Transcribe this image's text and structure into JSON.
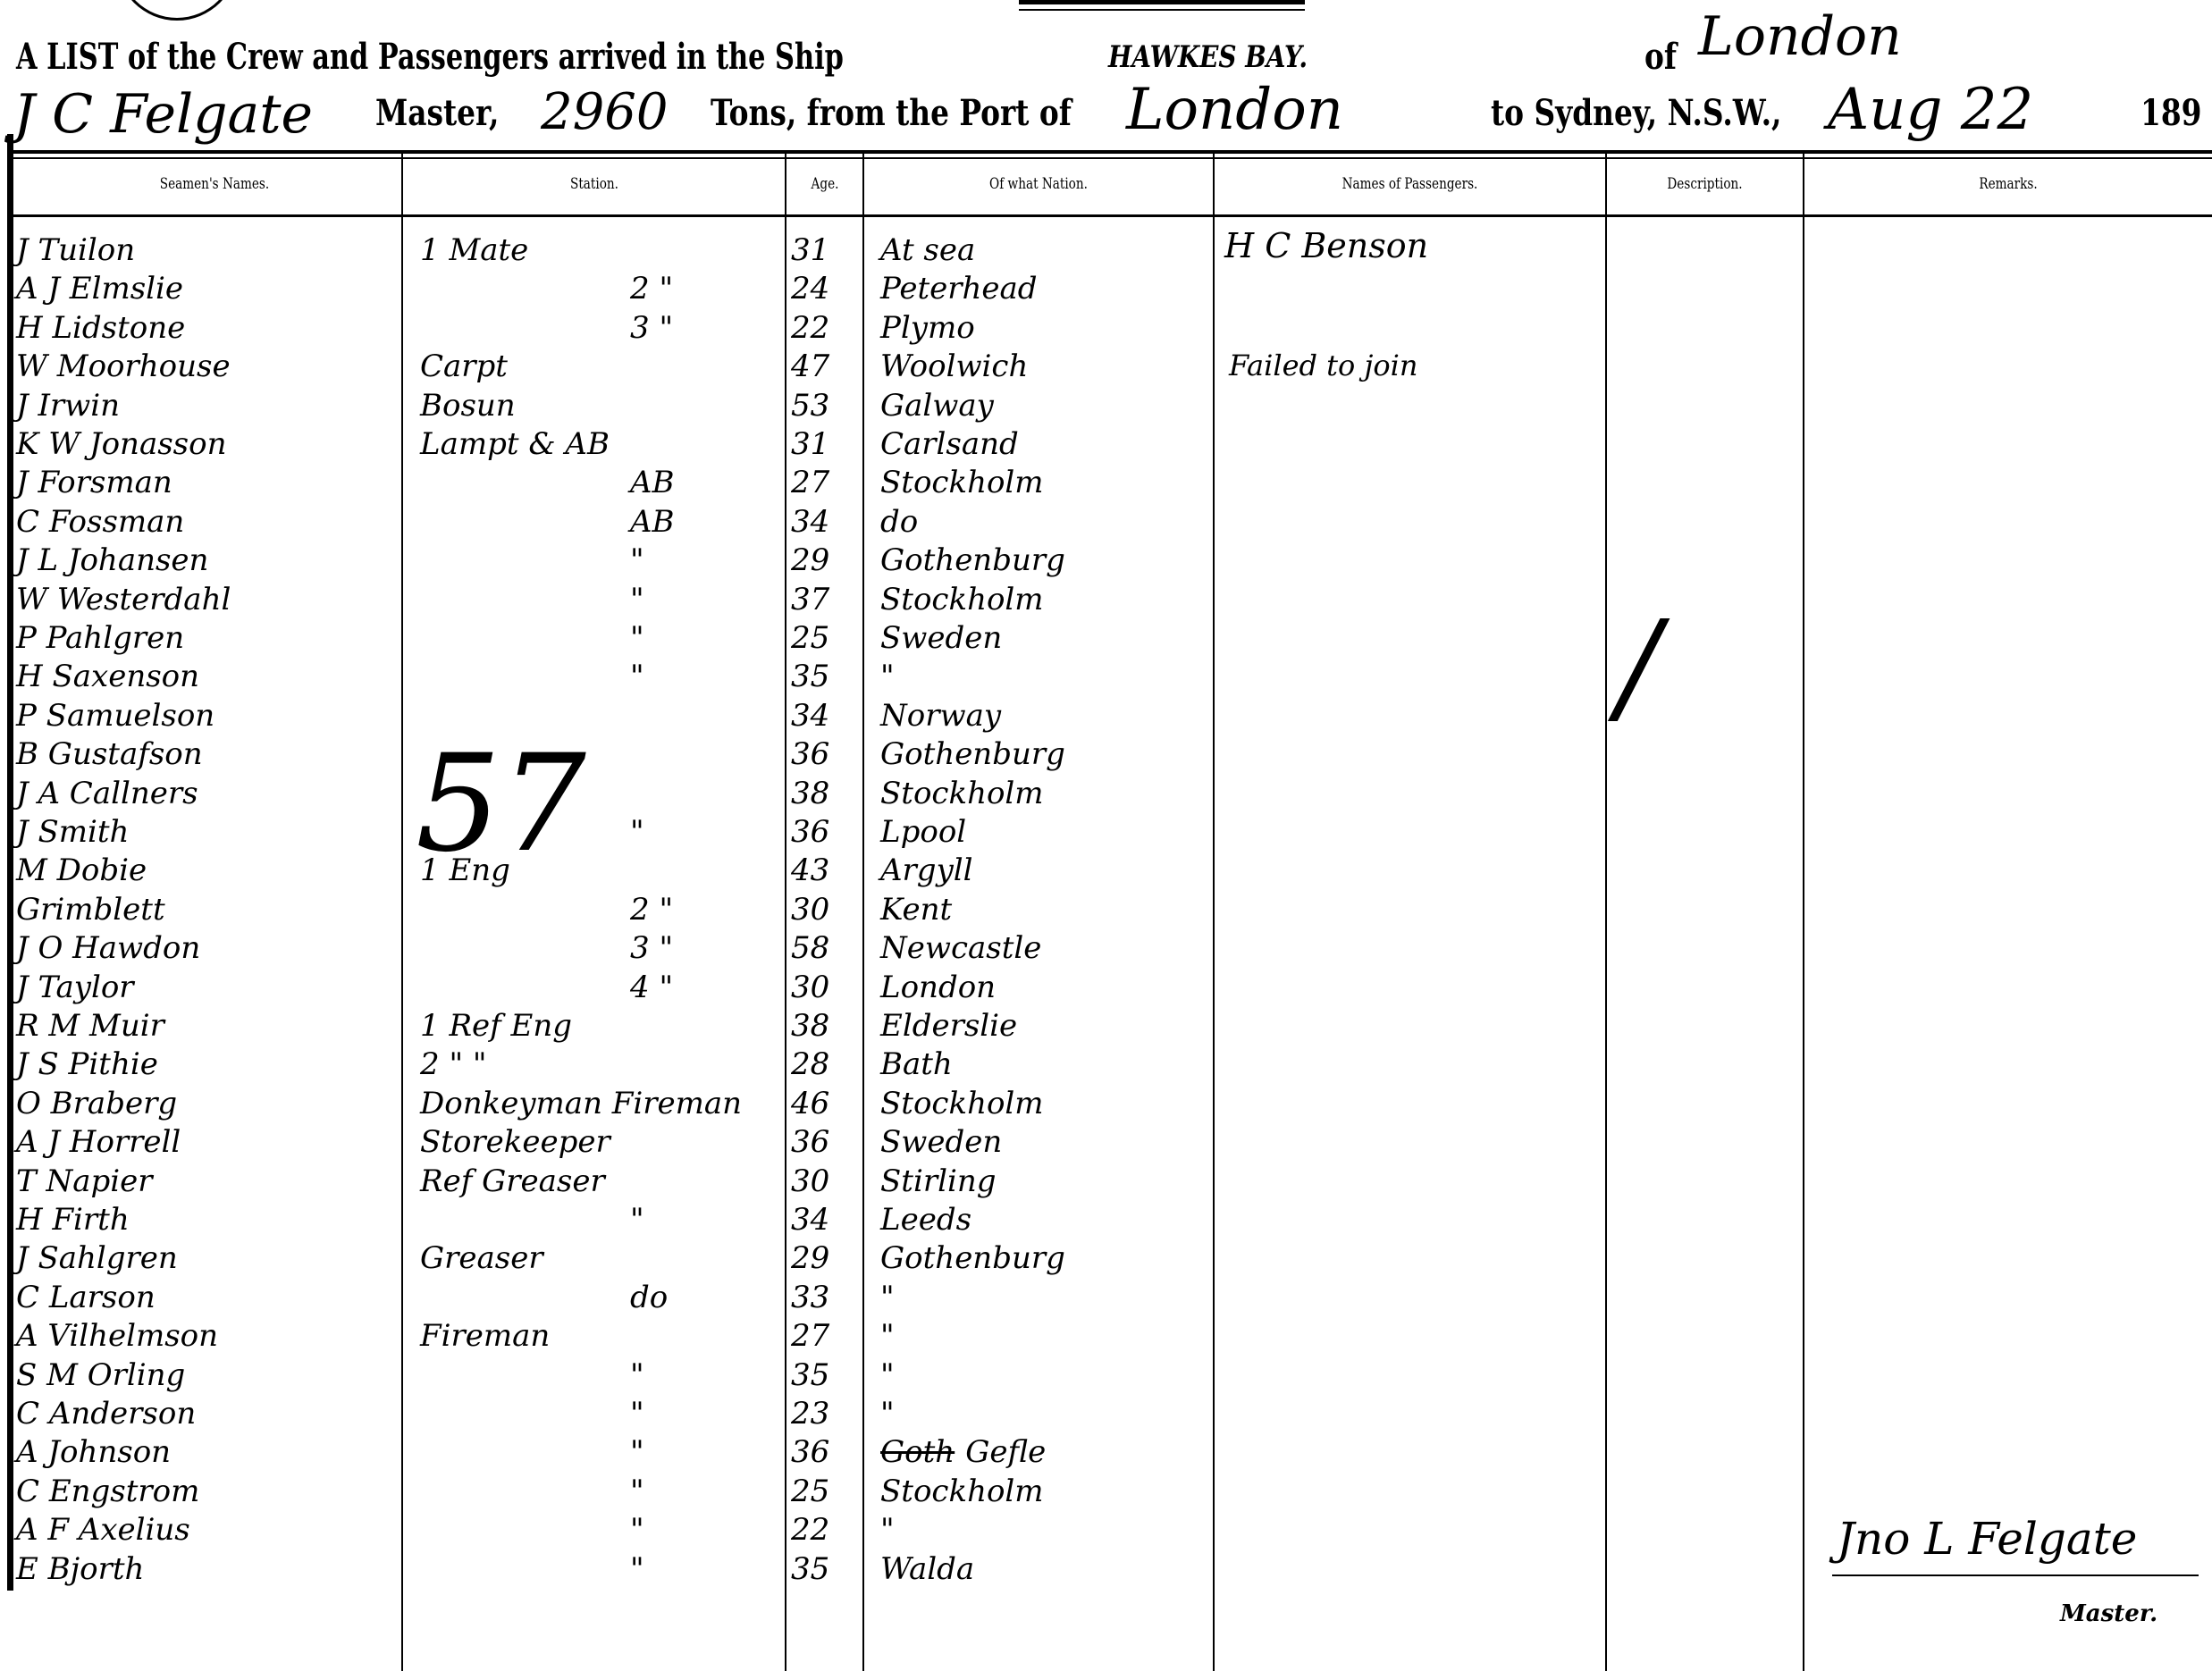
{
  "header": {
    "line1_prefix": "A LIST of the Crew and Passengers arrived in the Ship",
    "ship_name": "HAWKES BAY.",
    "of_label": "of",
    "ship_of": "London",
    "master_name": "J C Felgate",
    "master_label": "Master,",
    "tons": "2960",
    "tons_label": "Tons, from the Port of",
    "port_from": "London",
    "to_label": "to Sydney, N.S.W.,",
    "date": "Aug 22",
    "year_prefix": "189"
  },
  "columns": [
    "Seamen's Names.",
    "Station.",
    "Age.",
    "Of what Nation.",
    "Names of Passengers.",
    "Description.",
    "Remarks."
  ],
  "crew": [
    {
      "name": "J Tuilon",
      "station": "1 Mate",
      "age": "31",
      "nation": "At sea"
    },
    {
      "name": "A J Elmslie",
      "station": "2 \"",
      "age": "24",
      "nation": "Peterhead"
    },
    {
      "name": "H Lidstone",
      "station": "3 \"",
      "age": "22",
      "nation": "Plymo"
    },
    {
      "name": "W Moorhouse",
      "station": "Carpt",
      "age": "47",
      "nation": "Woolwich"
    },
    {
      "name": "J Irwin",
      "station": "Bosun",
      "age": "53",
      "nation": "Galway"
    },
    {
      "name": "K W Jonasson",
      "station": "Lampt & AB",
      "age": "31",
      "nation": "Carlsand"
    },
    {
      "name": "J Forsman",
      "station": "AB",
      "age": "27",
      "nation": "Stockholm"
    },
    {
      "name": "C Fossman",
      "station": "AB",
      "age": "34",
      "nation": "do"
    },
    {
      "name": "J L Johansen",
      "station": "\"",
      "age": "29",
      "nation": "Gothenburg"
    },
    {
      "name": "W Westerdahl",
      "station": "\"",
      "age": "37",
      "nation": "Stockholm"
    },
    {
      "name": "P Pahlgren",
      "station": "\"",
      "age": "25",
      "nation": "Sweden"
    },
    {
      "name": "H Saxenson",
      "station": "\"",
      "age": "35",
      "nation": "\""
    },
    {
      "name": "P Samuelson",
      "station": "",
      "age": "34",
      "nation": "Norway"
    },
    {
      "name": "B Gustafson",
      "station": "",
      "age": "36",
      "nation": "Gothenburg"
    },
    {
      "name": "J A Callners",
      "station": "",
      "age": "38",
      "nation": "Stockholm"
    },
    {
      "name": "J Smith",
      "station": "\"",
      "age": "36",
      "nation": "Lpool"
    },
    {
      "name": "M Dobie",
      "station": "1 Eng",
      "age": "43",
      "nation": "Argyll"
    },
    {
      "name": "Grimblett",
      "station": "2 \"",
      "age": "30",
      "nation": "Kent"
    },
    {
      "name": "J O Hawdon",
      "station": "3 \"",
      "age": "58",
      "nation": "Newcastle"
    },
    {
      "name": "J Taylor",
      "station": "4 \"",
      "age": "30",
      "nation": "London"
    },
    {
      "name": "R M Muir",
      "station": "1 Ref Eng",
      "age": "38",
      "nation": "Elderslie"
    },
    {
      "name": "J S Pithie",
      "station": "2 \" \"",
      "age": "28",
      "nation": "Bath"
    },
    {
      "name": "O Braberg",
      "station": "Donkeyman Fireman",
      "age": "46",
      "nation": "Stockholm"
    },
    {
      "name": "A J Horrell",
      "station": "Storekeeper",
      "age": "36",
      "nation": "Sweden"
    },
    {
      "name": "T Napier",
      "station": "Ref Greaser",
      "age": "30",
      "nation": "Stirling"
    },
    {
      "name": "H Firth",
      "station": "\"",
      "age": "34",
      "nation": "Leeds"
    },
    {
      "name": "J Sahlgren",
      "station": "Greaser",
      "age": "29",
      "nation": "Gothenburg"
    },
    {
      "name": "C Larson",
      "station": "do",
      "age": "33",
      "nation": "\""
    },
    {
      "name": "A Vilhelmson",
      "station": "Fireman",
      "age": "27",
      "nation": "\""
    },
    {
      "name": "S M Orling",
      "station": "\"",
      "age": "35",
      "nation": "\""
    },
    {
      "name": "C Anderson",
      "station": "\"",
      "age": "23",
      "nation": "\""
    },
    {
      "name": "A Johnson",
      "station": "\"",
      "age": "36",
      "nation": "Gefle",
      "struck": "Goth"
    },
    {
      "name": "C Engstrom",
      "station": "\"",
      "age": "25",
      "nation": "Stockholm"
    },
    {
      "name": "A F Axelius",
      "station": "\"",
      "age": "22",
      "nation": "\""
    },
    {
      "name": "E Bjorth",
      "station": "\"",
      "age": "35",
      "nation": "Walda"
    }
  ],
  "station_total": "57",
  "passengers": [
    {
      "row": 1,
      "name": "H C Benson"
    },
    {
      "row": 4,
      "name": "Failed to join"
    }
  ],
  "description_mark": "/",
  "signature": "Jno L Felgate",
  "signature_label": "Master."
}
